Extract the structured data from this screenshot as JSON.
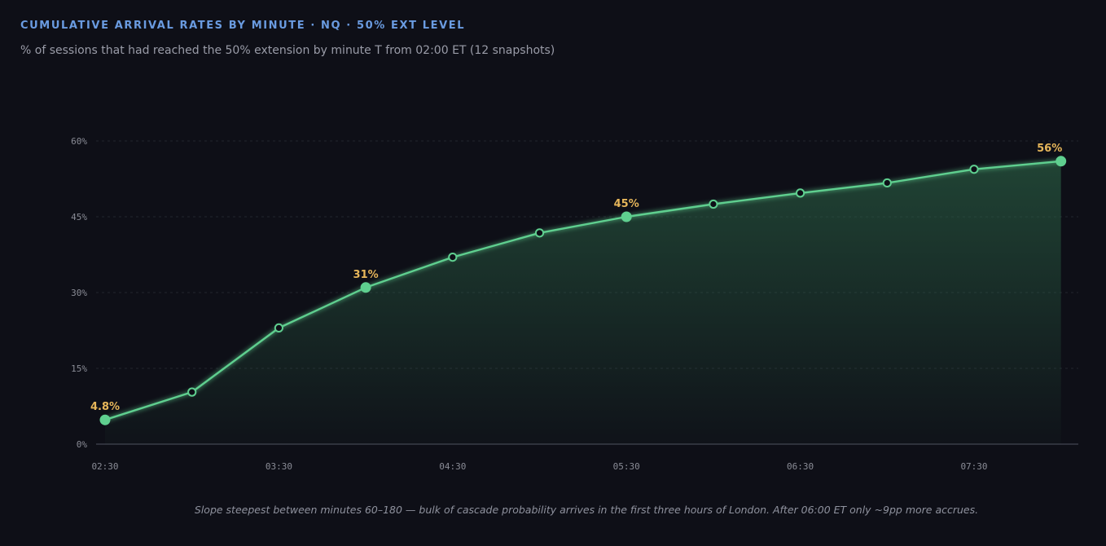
{
  "header": {
    "title": "CUMULATIVE ARRIVAL RATES BY MINUTE · NQ · 50% EXT LEVEL",
    "subtitle": "% of sessions that had reached the 50% extension by minute T from 02:00 ET (12 snapshots)"
  },
  "footnote": "Slope steepest between minutes 60–180 — bulk of cascade probability arrives in the first three hours of London. After 06:00 ET only ~9pp more accrues.",
  "colors": {
    "background": "#0e0f17",
    "line": "#5fcf8f",
    "fill": "#2f6e4c",
    "label": "#e6b65a",
    "title": "#6a9be0"
  },
  "chart_data": {
    "type": "area",
    "x": [
      "02:30",
      "03:00",
      "03:30",
      "04:00",
      "04:30",
      "05:00",
      "05:30",
      "06:00",
      "06:30",
      "07:00",
      "07:30",
      "08:00"
    ],
    "values": [
      4.8,
      10.3,
      23.0,
      31.0,
      37.0,
      41.8,
      45.0,
      47.5,
      49.7,
      51.7,
      54.4,
      56.0
    ],
    "highlighted": [
      {
        "index": 0,
        "label": "4.8%"
      },
      {
        "index": 3,
        "label": "31%"
      },
      {
        "index": 6,
        "label": "45%"
      },
      {
        "index": 11,
        "label": "56%"
      }
    ],
    "xticks": [
      "02:30",
      "03:30",
      "04:30",
      "05:30",
      "06:30",
      "07:30"
    ],
    "yticks": [
      "0%",
      "15%",
      "30%",
      "45%",
      "60%"
    ],
    "ytick_values": [
      0,
      15,
      30,
      45,
      60
    ],
    "ylim": [
      0,
      60
    ],
    "grid": true
  }
}
